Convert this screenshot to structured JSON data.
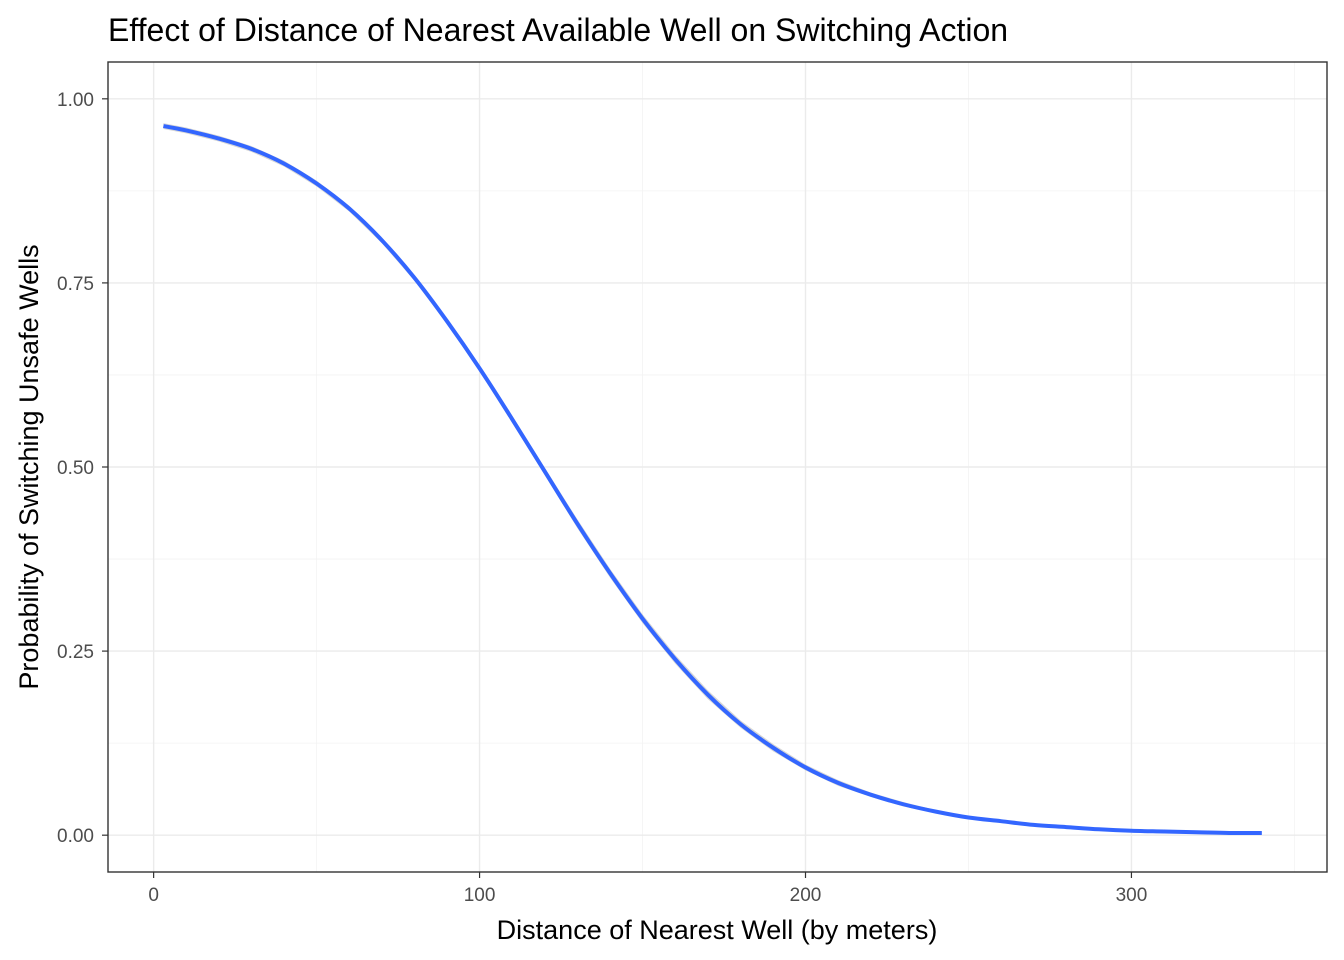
{
  "chart_data": {
    "type": "line",
    "title": "Effect of Distance of Nearest Available Well on Switching Action",
    "xlabel": "Distance of Nearest Well (by meters)",
    "ylabel": "Probability of Switching Unsafe Wells",
    "xlim": [
      -14,
      360
    ],
    "ylim": [
      -0.05,
      1.05
    ],
    "x_ticks": [
      0,
      100,
      200,
      300
    ],
    "y_ticks": [
      0.0,
      0.25,
      0.5,
      0.75,
      1.0
    ],
    "x_tick_labels": [
      "0",
      "100",
      "200",
      "300"
    ],
    "y_tick_labels": [
      "0.00",
      "0.25",
      "0.50",
      "0.75",
      "1.00"
    ],
    "grid": true,
    "legend": "none",
    "series": [
      {
        "color": "#3366ff",
        "confidence_band": true,
        "band_color": "#999999",
        "x": [
          3,
          10,
          20,
          30,
          40,
          50,
          60,
          70,
          80,
          90,
          100,
          110,
          120,
          130,
          140,
          150,
          160,
          170,
          180,
          190,
          200,
          210,
          220,
          230,
          240,
          250,
          260,
          270,
          280,
          290,
          300,
          310,
          320,
          330,
          340
        ],
        "y": [
          0.963,
          0.957,
          0.946,
          0.932,
          0.912,
          0.885,
          0.851,
          0.808,
          0.757,
          0.698,
          0.634,
          0.565,
          0.494,
          0.423,
          0.356,
          0.294,
          0.239,
          0.191,
          0.151,
          0.119,
          0.092,
          0.071,
          0.055,
          0.042,
          0.032,
          0.024,
          0.019,
          0.014,
          0.011,
          0.008,
          0.006,
          0.005,
          0.004,
          0.003,
          0.003
        ],
        "band_halfwidth": [
          0.004,
          0.004,
          0.004,
          0.004,
          0.004,
          0.004,
          0.004,
          0.004,
          0.004,
          0.004,
          0.004,
          0.005,
          0.005,
          0.006,
          0.006,
          0.006,
          0.006,
          0.006,
          0.005,
          0.005,
          0.004,
          0.004,
          0.003,
          0.003,
          0.002,
          0.002,
          0.002,
          0.001,
          0.001,
          0.001,
          0.001,
          0.001,
          0.001,
          0.001,
          0.001
        ]
      }
    ]
  }
}
